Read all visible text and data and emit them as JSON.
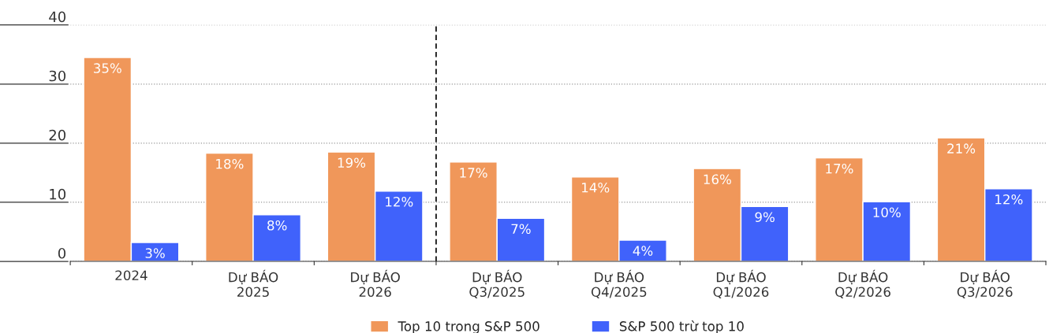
{
  "chart_data": {
    "type": "bar",
    "categories": [
      "2024",
      "Dự BÁO\n2025",
      "Dự BÁO\n2026",
      "Dự BÁO\nQ3/2025",
      "Dự BÁO\nQ4/2025",
      "Dự BÁO\nQ1/2026",
      "Dự BÁO\nQ2/2026",
      "Dự BÁO\nQ3/2026"
    ],
    "series": [
      {
        "name": "Top 10 trong S&P 500",
        "color": "#f0975a",
        "values": [
          34.5,
          18.3,
          18.5,
          16.8,
          14.3,
          15.7,
          17.5,
          20.9
        ],
        "value_labels": [
          "35%",
          "18%",
          "19%",
          "17%",
          "14%",
          "16%",
          "17%",
          "21%"
        ]
      },
      {
        "name": "S&P 500 trừ top 10",
        "color": "#4062fb",
        "values": [
          3.2,
          7.9,
          11.9,
          7.3,
          3.6,
          9.3,
          10.1,
          12.3
        ],
        "value_labels": [
          "3%",
          "8%",
          "12%",
          "7%",
          "4%",
          "9%",
          "10%",
          "12%"
        ]
      }
    ],
    "ylim": [
      0,
      40
    ],
    "yticks": [
      0,
      10,
      20,
      30,
      40
    ],
    "grid": "y",
    "legend": "bottom"
  }
}
